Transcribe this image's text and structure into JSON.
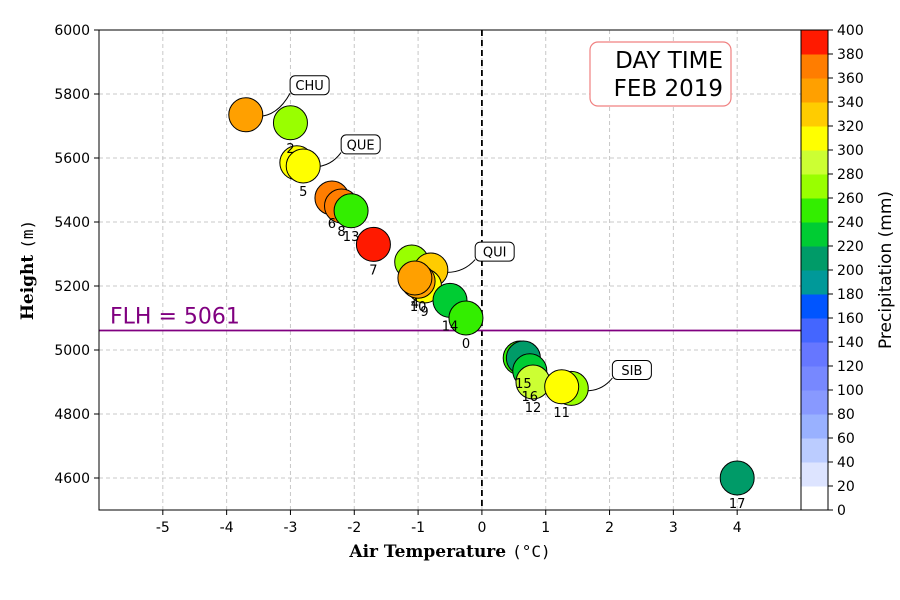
{
  "chart_data": {
    "type": "scatter",
    "title_lines": [
      "DAY TIME",
      "FEB 2019"
    ],
    "xlabel": "Air Temperature",
    "xlabel_unit": "(°C)",
    "ylabel": "Height",
    "ylabel_unit": "(m)",
    "xlim": [
      -6,
      5
    ],
    "ylim": [
      4500,
      6000
    ],
    "xticks": [
      -5,
      -4,
      -3,
      -2,
      -1,
      0,
      1,
      2,
      3,
      4
    ],
    "yticks": [
      4600,
      4800,
      5000,
      5200,
      5400,
      5600,
      5800,
      6000
    ],
    "grid": true,
    "flh": {
      "label": "FLH = 5061",
      "value": 5061,
      "color": "#800080"
    },
    "zero_line_x": 0,
    "colorbar": {
      "label": "Precipitation (mm)",
      "ticks": [
        0,
        20,
        40,
        60,
        80,
        100,
        120,
        140,
        160,
        180,
        200,
        220,
        240,
        260,
        280,
        300,
        320,
        340,
        360,
        380,
        400
      ],
      "colors": [
        "#ffffff",
        "#dde4ff",
        "#bbccff",
        "#99b1ff",
        "#8899ff",
        "#7788ff",
        "#6677ff",
        "#4466ff",
        "#0055ff",
        "#009999",
        "#009b68",
        "#00cc33",
        "#33ee00",
        "#99ff00",
        "#ccff33",
        "#ffff00",
        "#ffcc00",
        "#ffa000",
        "#ff7d00",
        "#ff1a00"
      ]
    },
    "points": [
      {
        "label": "",
        "x": -3.7,
        "y": 5735,
        "precip": 350
      },
      {
        "label": "2",
        "x": -3.0,
        "y": 5710,
        "precip": 275
      },
      {
        "label": "",
        "x": -2.9,
        "y": 5585,
        "precip": 310
      },
      {
        "label": "5",
        "x": -2.8,
        "y": 5575,
        "precip": 300
      },
      {
        "label": "6",
        "x": -2.35,
        "y": 5475,
        "precip": 365
      },
      {
        "label": "8",
        "x": -2.2,
        "y": 5450,
        "precip": 370
      },
      {
        "label": "13",
        "x": -2.05,
        "y": 5435,
        "precip": 250
      },
      {
        "label": "7",
        "x": -1.7,
        "y": 5330,
        "precip": 395
      },
      {
        "label": "",
        "x": -1.1,
        "y": 5275,
        "precip": 275
      },
      {
        "label": "",
        "x": -0.8,
        "y": 5250,
        "precip": 320
      },
      {
        "label": "9",
        "x": -0.9,
        "y": 5200,
        "precip": 305
      },
      {
        "label": "10",
        "x": -1.0,
        "y": 5215,
        "precip": 345
      },
      {
        "label": "4",
        "x": -1.05,
        "y": 5225,
        "precip": 340
      },
      {
        "label": "14",
        "x": -0.5,
        "y": 5155,
        "precip": 230
      },
      {
        "label": "0",
        "x": -0.25,
        "y": 5100,
        "precip": 245
      },
      {
        "label": "",
        "x": 0.6,
        "y": 4975,
        "precip": 250
      },
      {
        "label": "15",
        "x": 0.65,
        "y": 4975,
        "precip": 210
      },
      {
        "label": "16",
        "x": 0.75,
        "y": 4935,
        "precip": 230
      },
      {
        "label": "12",
        "x": 0.8,
        "y": 4900,
        "precip": 280
      },
      {
        "label": "",
        "x": 1.4,
        "y": 4880,
        "precip": 265
      },
      {
        "label": "11",
        "x": 1.25,
        "y": 4885,
        "precip": 300
      },
      {
        "label": "17",
        "x": 4.0,
        "y": 4600,
        "precip": 210
      }
    ],
    "annotations": [
      {
        "text": "CHU",
        "x": -2.7,
        "y": 5815,
        "target_x": -3.7,
        "target_y": 5735
      },
      {
        "text": "QUE",
        "x": -1.9,
        "y": 5630,
        "target_x": -2.85,
        "target_y": 5580
      },
      {
        "text": "QUI",
        "x": 0.2,
        "y": 5295,
        "target_x": -0.8,
        "target_y": 5250
      },
      {
        "text": "SIB",
        "x": 2.35,
        "y": 4925,
        "target_x": 1.4,
        "target_y": 4880
      }
    ]
  }
}
